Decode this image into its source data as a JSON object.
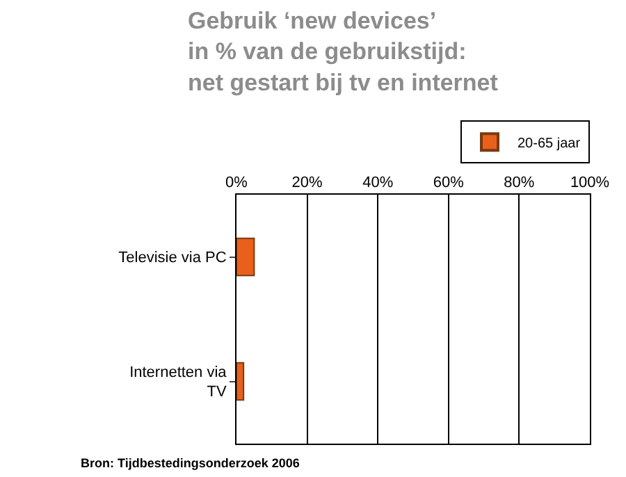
{
  "chart_data": {
    "type": "bar",
    "orientation": "horizontal",
    "title": "Gebruik ‘new devices’\nin % van de gebruikstijd:\nnet gestart bij tv en internet",
    "categories": [
      "Televisie via PC",
      "Internetten via\nTV"
    ],
    "series": [
      {
        "name": "20-65 jaar",
        "color": "#e8601c",
        "values": [
          5,
          2
        ]
      }
    ],
    "xlim": [
      0,
      100
    ],
    "xticks": [
      {
        "value": 0,
        "label": "0%"
      },
      {
        "value": 20,
        "label": "20%"
      },
      {
        "value": 40,
        "label": "40%"
      },
      {
        "value": 60,
        "label": "60%"
      },
      {
        "value": 80,
        "label": "80%"
      },
      {
        "value": 100,
        "label": "100%"
      }
    ],
    "grid": "x",
    "legend": "top right",
    "annotations": [
      "Bron: Tijdbestedingsonderzoek 2006"
    ]
  }
}
